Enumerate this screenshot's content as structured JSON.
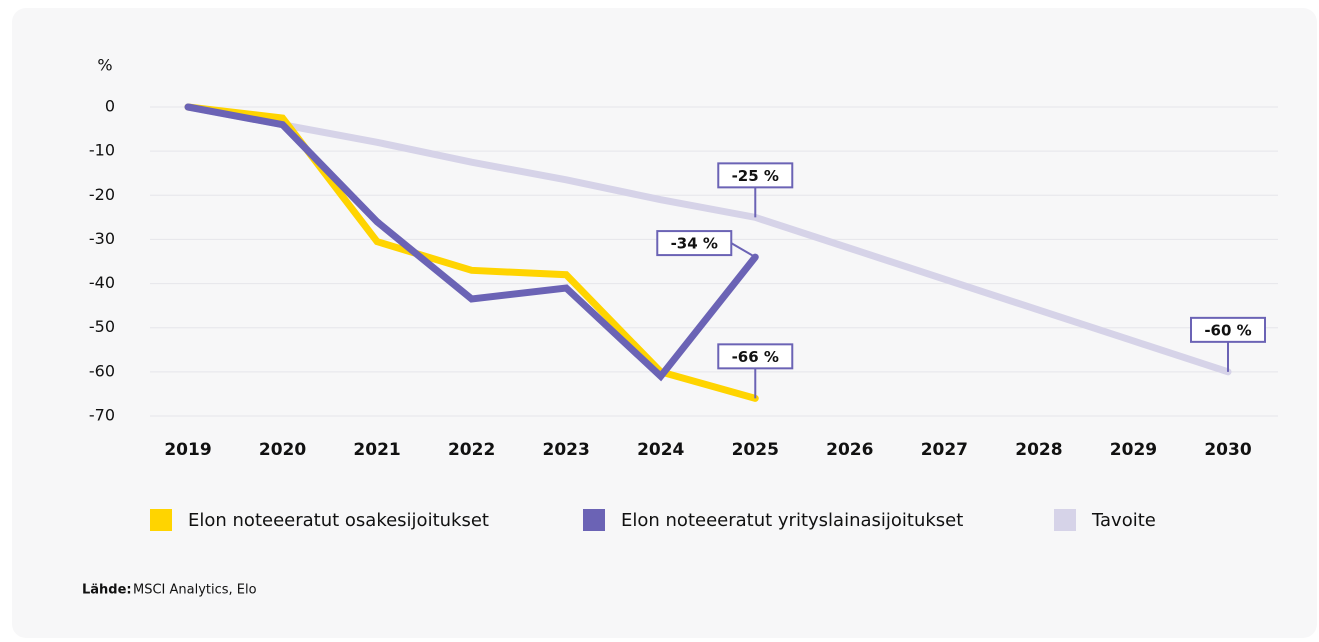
{
  "chart_data": {
    "type": "line",
    "y_label": "%",
    "categories": [
      "2019",
      "2020",
      "2021",
      "2022",
      "2023",
      "2024",
      "2025",
      "2026",
      "2027",
      "2028",
      "2029",
      "2030"
    ],
    "series": [
      {
        "name": "Elon noteeeratut osakesijoitukset",
        "color": "#ffd400",
        "values": [
          0,
          -2.5,
          -30.5,
          -37,
          -38,
          -60,
          -66,
          null,
          null,
          null,
          null,
          null
        ],
        "value_labels": [
          null,
          null,
          null,
          null,
          null,
          null,
          "-66 %",
          null,
          null,
          null,
          null,
          null
        ]
      },
      {
        "name": "Elon noteeeratut yrityslainasijoitukset",
        "color": "#6b63b5",
        "values": [
          0,
          -4,
          -26,
          -43.5,
          -41,
          -61,
          -34,
          null,
          null,
          null,
          null,
          null
        ],
        "value_labels": [
          null,
          null,
          null,
          null,
          null,
          null,
          "-34 %",
          null,
          null,
          null,
          null,
          null
        ]
      },
      {
        "name": "Tavoite",
        "color": "#d6d3e8",
        "values": [
          0,
          -4,
          -8,
          -12.5,
          -16.5,
          -21,
          -25,
          -32,
          -39,
          -46,
          -53,
          -60
        ],
        "value_labels": [
          null,
          null,
          null,
          null,
          null,
          null,
          "-25 %",
          null,
          null,
          null,
          null,
          "-60 %"
        ]
      }
    ],
    "ylim": [
      -70,
      0
    ],
    "yticks": [
      0,
      -10,
      -20,
      -30,
      -40,
      -50,
      -60,
      -70
    ],
    "grid": true,
    "legend": "bottom",
    "source_label": "Lähde:",
    "source": "MSCI Analytics, Elo"
  }
}
